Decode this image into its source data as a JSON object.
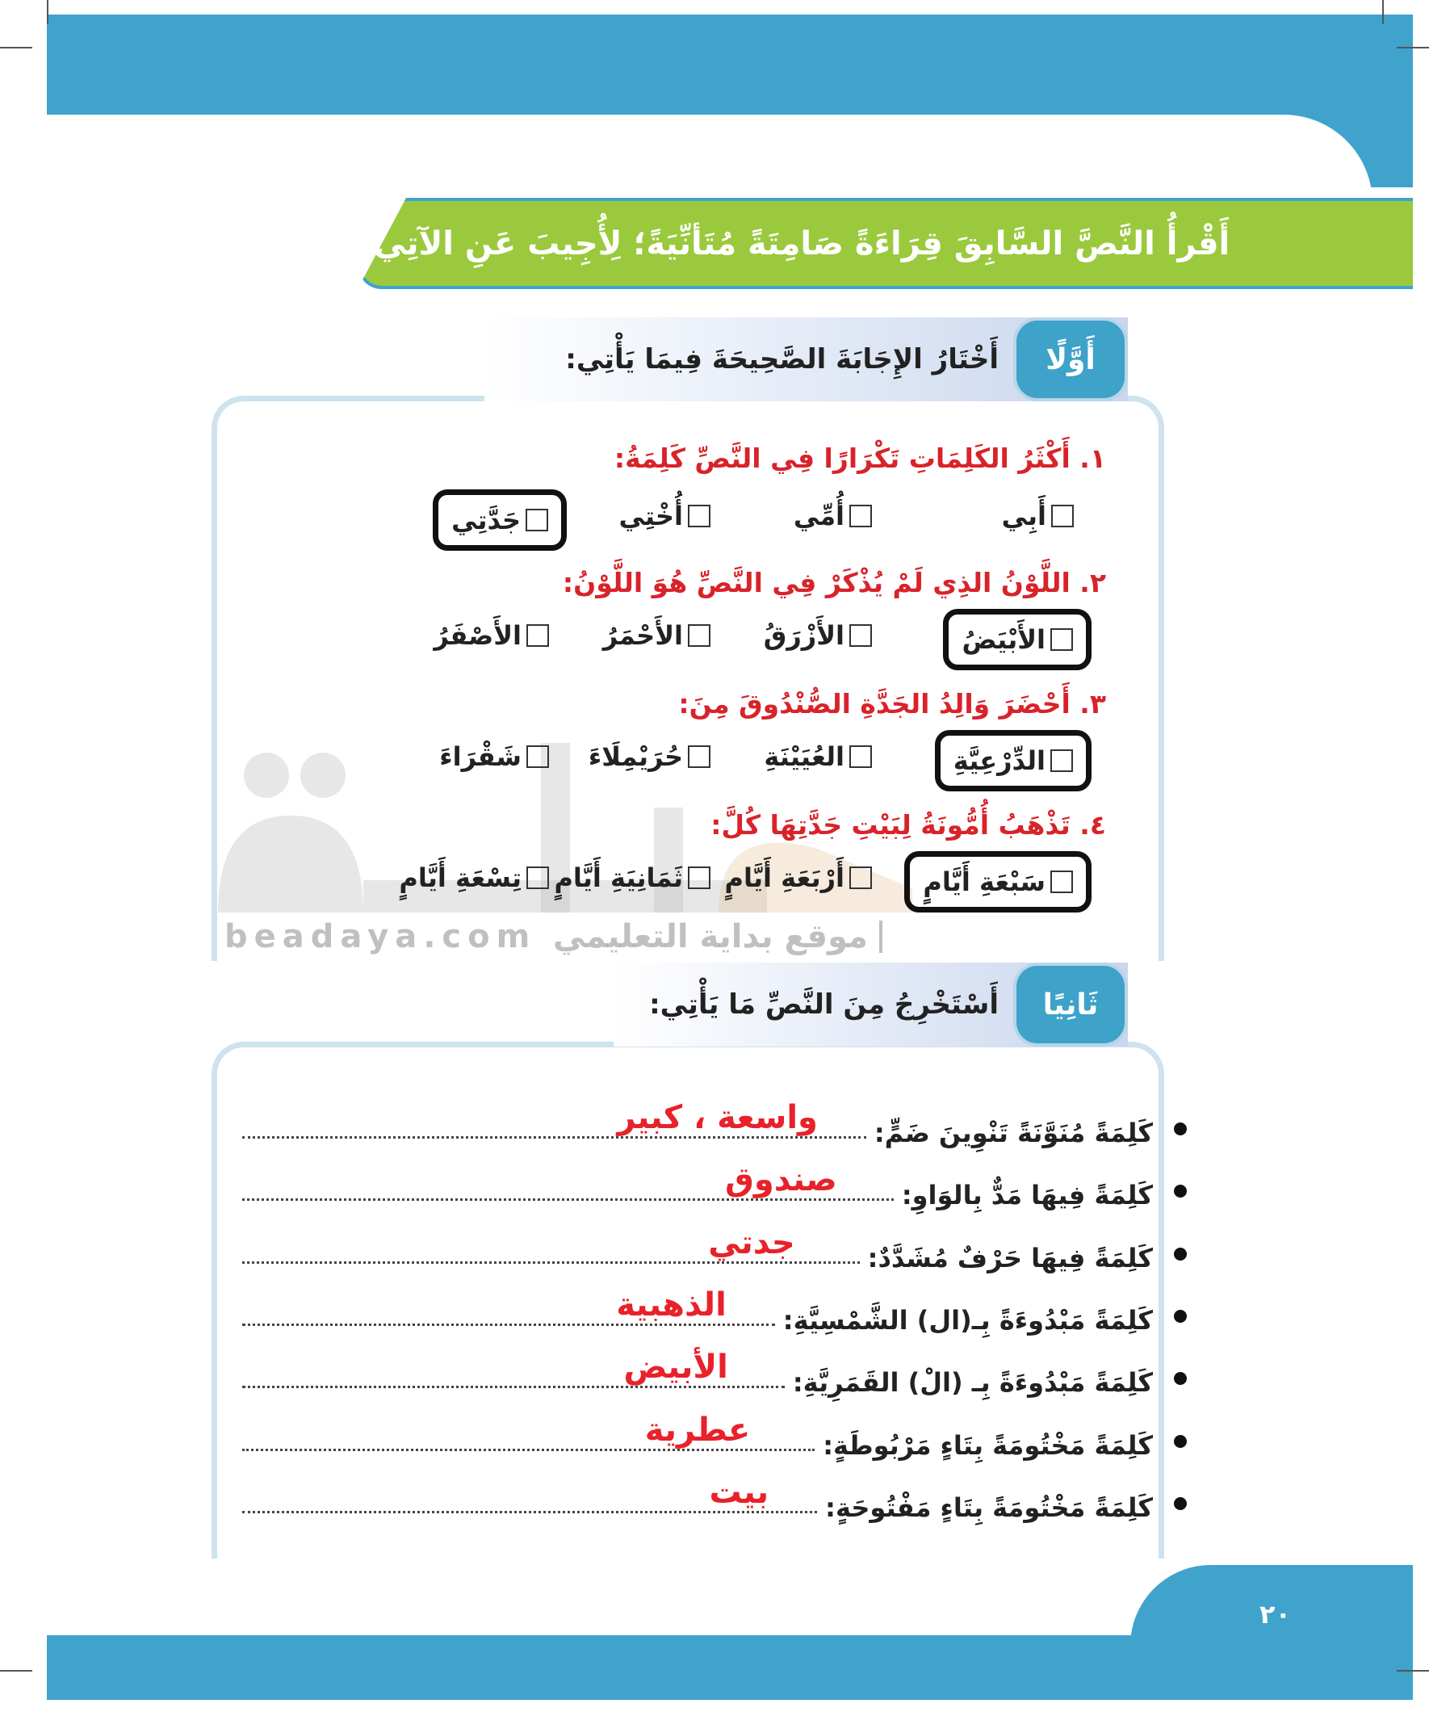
{
  "header": {
    "instruction": "أَقْرأُ النَّصَّ السَّابِقَ قِرَاءَةً صَامِتَةً مُتَأنِّيَةً؛ لِأُجِيبَ عَنِ الآتِي:"
  },
  "section1": {
    "tab": "أَوَّلًا",
    "title": "أَخْتَارُ الإِجَابَةَ الصَّحِيحَةَ فِيمَا يَأْتِي:",
    "questions": [
      {
        "text": "١. أَكْثَرُ الكَلِمَاتِ تَكْرَارًا فِي النَّصِّ كَلِمَةُ:",
        "options": [
          "أَبِي",
          "أُمِّي",
          "أُخْتِي",
          "جَدَّتِي"
        ],
        "selected": 3
      },
      {
        "text": "٢. اللَّوْنُ الذِي لَمْ يُذْكَرْ فِي النَّصِّ هُوَ اللَّوْنُ:",
        "options": [
          "الأَبْيَضُ",
          "الأَزْرَقُ",
          "الأَحْمَرُ",
          "الأَصْفَرُ"
        ],
        "selected": 0
      },
      {
        "text": "٣. أَحْضَرَ وَالِدُ الجَدَّةِ الصُّنْدُوقَ مِنَ:",
        "options": [
          "الدِّرْعِيَّةِ",
          "العُيَيْنَةِ",
          "حُرَيْمِلَاءَ",
          "شَقْرَاءَ"
        ],
        "selected": 0
      },
      {
        "text": "٤. تَذْهَبُ أُمُّونَةُ لِبَيْتِ جَدَّتِهَا كُلَّ:",
        "options": [
          "سَبْعَةِ أَيَّامٍ",
          "أَرْبَعَةِ أَيَّامٍ",
          "ثَمَانِيَةِ أَيَّامٍ",
          "تِسْعَةِ أَيَّامٍ"
        ],
        "selected": 0
      }
    ]
  },
  "section2": {
    "tab": "ثَانِيًا",
    "title": "أَسْتَخْرِجُ مِنَ النَّصِّ مَا يَأْتِي:",
    "items": [
      {
        "label": "كَلِمَةً مُنَوَّنَةً تَنْوِينَ ضَمٍّ:",
        "answer": "واسعة ، كبير"
      },
      {
        "label": "كَلِمَةً فِيهَا مَدٌّ بِالوَاوِ:",
        "answer": "صندوق"
      },
      {
        "label": "كَلِمَةً فِيهَا حَرْفٌ مُشَدَّدٌ:",
        "answer": "جدتي"
      },
      {
        "label": "كَلِمَةً مَبْدُوءَةً بِـ(ال) الشَّمْسِيَّةِ:",
        "answer": "الذهبية"
      },
      {
        "label": "كَلِمَةً مَبْدُوءَةً بِـ (الْ) القَمَرِيَّةِ:",
        "answer": "الأبيض"
      },
      {
        "label": "كَلِمَةً مَخْتُومَةً بِتَاءٍ مَرْبُوطَةٍ:",
        "answer": "عطرية"
      },
      {
        "label": "كَلِمَةً مَخْتُومَةً بِتَاءٍ مَفْتُوحَةٍ:",
        "answer": "بيت"
      }
    ]
  },
  "watermark": {
    "logo": "بداية",
    "site": "beadaya.com",
    "tagline": "موقع بداية التعليمي"
  },
  "footer": {
    "page_number": "٢٠"
  },
  "colors": {
    "blue": "#3fa3cc",
    "green": "#9bc93d",
    "question_red": "#d8232a",
    "answer_red": "#e8212a"
  }
}
